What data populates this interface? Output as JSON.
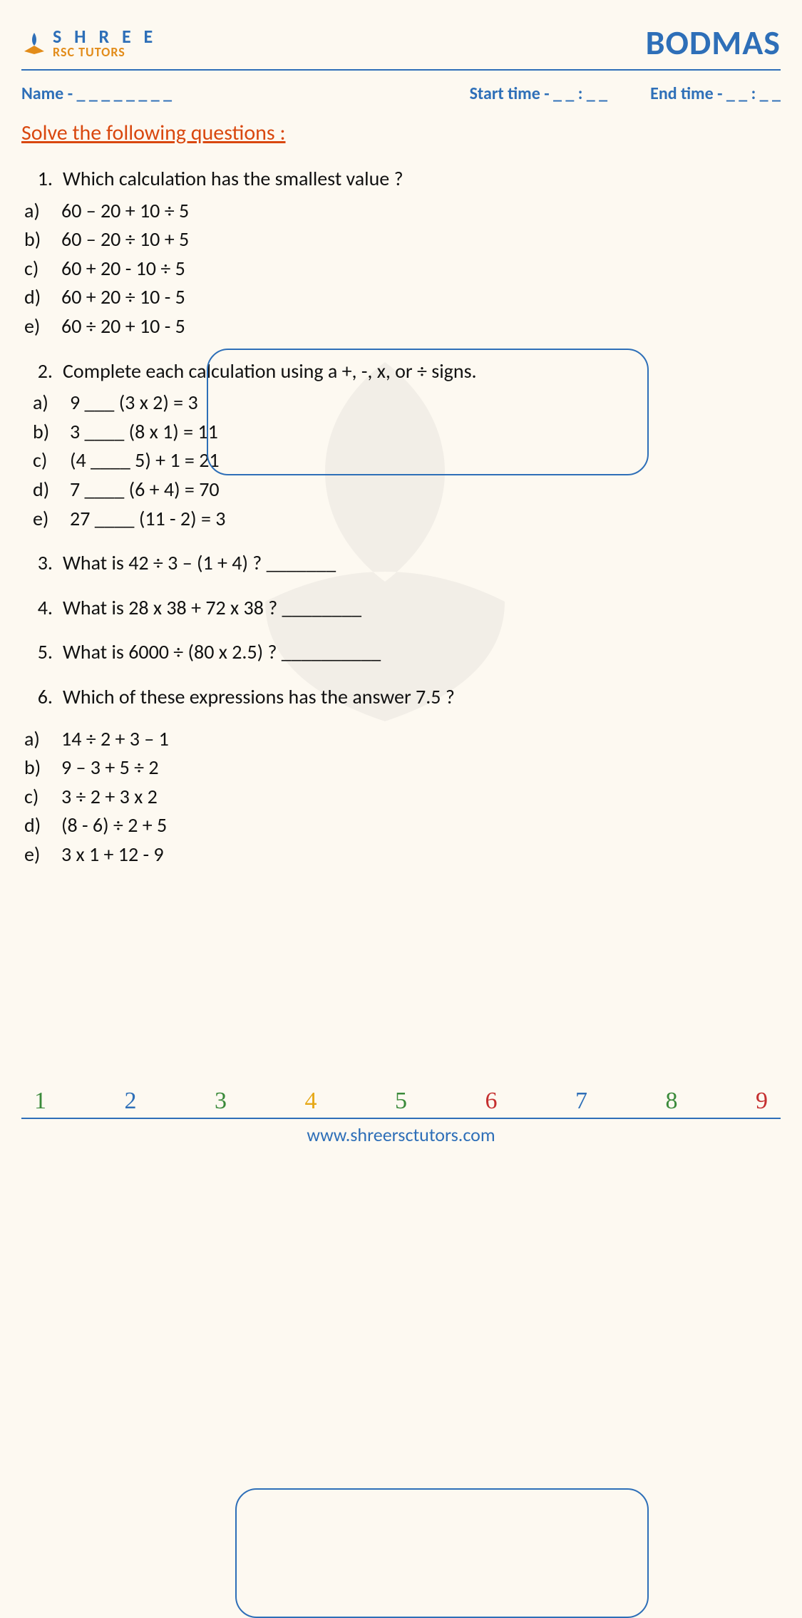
{
  "logo": {
    "main": "S H R E E",
    "sub": "RSC TUTORS"
  },
  "title": "BODMAS",
  "meta": {
    "name": "Name - _ _ _ _ _ _ _ _",
    "start": "Start time - _ _ : _ _",
    "end": "End time - _ _ : _ _"
  },
  "instruction": "Solve the following questions :",
  "q1": {
    "num": "1.",
    "text": "Which calculation has the smallest value ?",
    "opts": [
      {
        "l": "a)",
        "t": "60 – 20 +  10 ÷ 5"
      },
      {
        "l": "b)",
        "t": "60 – 20 ÷  10 + 5"
      },
      {
        "l": "c)",
        "t": "60 + 20 -  10 ÷ 5"
      },
      {
        "l": "d)",
        "t": "60 + 20 ÷  10 - 5"
      },
      {
        "l": "e)",
        "t": "60 ÷ 20 +  10 - 5"
      }
    ]
  },
  "q2": {
    "num": "2.",
    "text": "Complete each calculation using a +, -, x, or ÷ signs.",
    "opts": [
      {
        "l": "a)",
        "t": "9 ___ (3 x 2) = 3"
      },
      {
        "l": "b)",
        "t": "3 ____ (8 x 1) = 11"
      },
      {
        "l": "c)",
        "t": "(4 ____ 5) + 1 = 21"
      },
      {
        "l": "d)",
        "t": "7 ____ (6 + 4) = 70"
      },
      {
        "l": "e)",
        "t": "27 ____ (11 - 2) = 3"
      }
    ]
  },
  "q3": {
    "num": "3.",
    "text": "What is 42 ÷ 3 – (1 + 4) ? _______"
  },
  "q4": {
    "num": "4.",
    "text": "What is 28 x 38 + 72 x 38 ? ________"
  },
  "q5": {
    "num": "5.",
    "text": "What is 6000 ÷ (80 x 2.5) ? __________"
  },
  "q6": {
    "num": "6.",
    "text": "Which of these expressions has the answer 7.5 ?",
    "opts": [
      {
        "l": "a)",
        "t": "14 ÷ 2 + 3 – 1"
      },
      {
        "l": "b)",
        "t": "9 – 3 + 5 ÷ 2"
      },
      {
        "l": "c)",
        "t": "3 ÷ 2 + 3 x 2"
      },
      {
        "l": "d)",
        "t": "(8 - 6) ÷ 2 + 5"
      },
      {
        "l": "e)",
        "t": "3 x 1  + 12 - 9"
      }
    ]
  },
  "footer_numbers": [
    {
      "v": "1",
      "c": "#3a8a3a"
    },
    {
      "v": "2",
      "c": "#2e6fb8"
    },
    {
      "v": "3",
      "c": "#3a8a3a"
    },
    {
      "v": "4",
      "c": "#e6a817"
    },
    {
      "v": "5",
      "c": "#3a8a3a"
    },
    {
      "v": "6",
      "c": "#c53030"
    },
    {
      "v": "7",
      "c": "#2e6fb8"
    },
    {
      "v": "8",
      "c": "#3a8a3a"
    },
    {
      "v": "9",
      "c": "#c53030"
    }
  ],
  "footer_url": "www.shreersctutors.com"
}
